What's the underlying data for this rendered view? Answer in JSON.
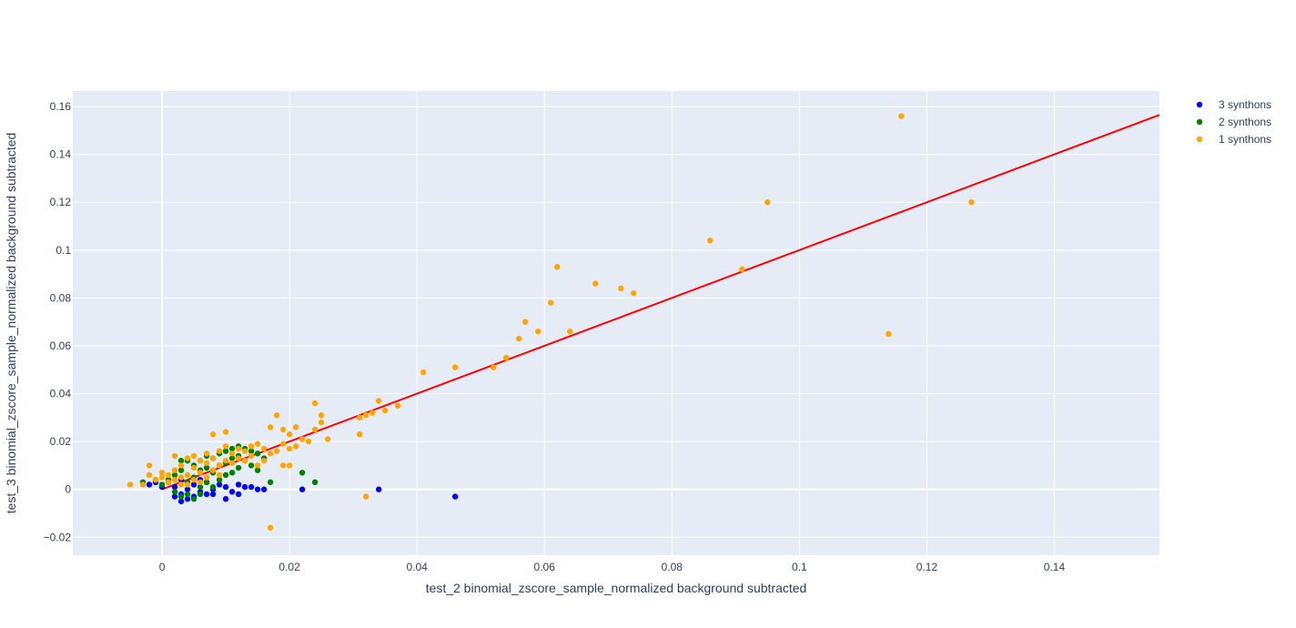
{
  "chart_data": {
    "type": "scatter",
    "title": "",
    "xlabel": "test_2 binomial_zscore_sample_normalized background subtracted",
    "ylabel": "test_3 binomial_zscore_sample_normalized background subtracted",
    "xlim": [
      -0.014,
      0.1565
    ],
    "ylim": [
      -0.0275,
      0.1665
    ],
    "xticks": [
      0,
      0.02,
      0.04,
      0.06,
      0.08,
      0.1,
      0.12,
      0.14
    ],
    "xtick_labels": [
      "0",
      "0.02",
      "0.04",
      "0.06",
      "0.08",
      "0.1",
      "0.12",
      "0.14"
    ],
    "yticks": [
      -0.02,
      0,
      0.02,
      0.04,
      0.06,
      0.08,
      0.1,
      0.12,
      0.14,
      0.16
    ],
    "ytick_labels": [
      "−0.02",
      "0",
      "0.02",
      "0.04",
      "0.06",
      "0.08",
      "0.1",
      "0.12",
      "0.14",
      "0.16"
    ],
    "grid": true,
    "legend_position": "top-right",
    "plot_bg": "#e5ecf6",
    "series": [
      {
        "name": "3 synthons",
        "color": "#0000ff",
        "points": [
          [
            -0.002,
            0.002
          ],
          [
            -0.001,
            0.003
          ],
          [
            0,
            0.001
          ],
          [
            0.001,
            0.003
          ],
          [
            0.002,
            -0.003
          ],
          [
            0.002,
            0.001
          ],
          [
            0.003,
            -0.005
          ],
          [
            0.003,
            -0.002
          ],
          [
            0.003,
            0.004
          ],
          [
            0.004,
            -0.004
          ],
          [
            0.004,
            0.0
          ],
          [
            0.005,
            -0.003
          ],
          [
            0.005,
            0.002
          ],
          [
            0.006,
            -0.001
          ],
          [
            0.006,
            0.004
          ],
          [
            0.007,
            -0.002
          ],
          [
            0.007,
            0.003
          ],
          [
            0.008,
            0.0
          ],
          [
            0.008,
            -0.002
          ],
          [
            0.009,
            0.002
          ],
          [
            0.01,
            -0.004
          ],
          [
            0.01,
            0.001
          ],
          [
            0.011,
            -0.001
          ],
          [
            0.012,
            0.002
          ],
          [
            0.012,
            -0.002
          ],
          [
            0.013,
            0.001
          ],
          [
            0.014,
            0.001
          ],
          [
            0.015,
            0.0
          ],
          [
            0.016,
            0.0
          ],
          [
            0.022,
            0.0
          ],
          [
            0.034,
            0.0
          ],
          [
            0.046,
            -0.003
          ]
        ]
      },
      {
        "name": "2 synthons",
        "color": "#008000",
        "points": [
          [
            -0.003,
            0.003
          ],
          [
            -0.001,
            0.004
          ],
          [
            0,
            0.002
          ],
          [
            0.001,
            0.004
          ],
          [
            0.002,
            0.006
          ],
          [
            0.002,
            -0.001
          ],
          [
            0.003,
            0.012
          ],
          [
            0.003,
            0.008
          ],
          [
            0.003,
            -0.003
          ],
          [
            0.004,
            0.012
          ],
          [
            0.004,
            0.003
          ],
          [
            0.004,
            -0.002
          ],
          [
            0.005,
            0.01
          ],
          [
            0.005,
            0.005
          ],
          [
            0.005,
            -0.004
          ],
          [
            0.006,
            0.012
          ],
          [
            0.006,
            0.008
          ],
          [
            0.006,
            0.001
          ],
          [
            0.006,
            -0.002
          ],
          [
            0.007,
            0.014
          ],
          [
            0.007,
            0.009
          ],
          [
            0.007,
            0.003
          ],
          [
            0.008,
            0.013
          ],
          [
            0.008,
            0.007
          ],
          [
            0.008,
            0.001
          ],
          [
            0.009,
            0.015
          ],
          [
            0.009,
            0.01
          ],
          [
            0.009,
            0.004
          ],
          [
            0.01,
            0.016
          ],
          [
            0.01,
            0.011
          ],
          [
            0.01,
            0.006
          ],
          [
            0.011,
            0.017
          ],
          [
            0.011,
            0.013
          ],
          [
            0.011,
            0.007
          ],
          [
            0.012,
            0.018
          ],
          [
            0.012,
            0.014
          ],
          [
            0.012,
            0.009
          ],
          [
            0.013,
            0.017
          ],
          [
            0.013,
            0.012
          ],
          [
            0.014,
            0.016
          ],
          [
            0.014,
            0.01
          ],
          [
            0.015,
            0.015
          ],
          [
            0.015,
            0.008
          ],
          [
            0.016,
            0.013
          ],
          [
            0.017,
            0.003
          ],
          [
            0.022,
            0.007
          ],
          [
            0.024,
            0.003
          ]
        ]
      },
      {
        "name": "1 synthons",
        "color": "#ffa500",
        "points": [
          [
            -0.005,
            0.002
          ],
          [
            -0.003,
            0.002
          ],
          [
            -0.002,
            0.006
          ],
          [
            -0.002,
            0.01
          ],
          [
            -0.001,
            0.004
          ],
          [
            0,
            0.005
          ],
          [
            0,
            0.007
          ],
          [
            0.001,
            0.003
          ],
          [
            0.001,
            0.006
          ],
          [
            0.002,
            0.004
          ],
          [
            0.002,
            0.008
          ],
          [
            0.002,
            0.014
          ],
          [
            0.003,
            0.005
          ],
          [
            0.003,
            0.01
          ],
          [
            0.003,
            0.002
          ],
          [
            0.004,
            0.006
          ],
          [
            0.004,
            0.013
          ],
          [
            0.004,
            0.002
          ],
          [
            0.005,
            0.004
          ],
          [
            0.005,
            0.009
          ],
          [
            0.005,
            0.014
          ],
          [
            0.006,
            0.007
          ],
          [
            0.006,
            0.012
          ],
          [
            0.006,
            0.003
          ],
          [
            0.007,
            0.005
          ],
          [
            0.007,
            0.011
          ],
          [
            0.007,
            0.015
          ],
          [
            0.008,
            0.008
          ],
          [
            0.008,
            0.013
          ],
          [
            0.008,
            0.023
          ],
          [
            0.009,
            0.01
          ],
          [
            0.009,
            0.016
          ],
          [
            0.009,
            0.006
          ],
          [
            0.01,
            0.012
          ],
          [
            0.01,
            0.018
          ],
          [
            0.01,
            0.024
          ],
          [
            0.011,
            0.011
          ],
          [
            0.011,
            0.015
          ],
          [
            0.012,
            0.013
          ],
          [
            0.012,
            0.017
          ],
          [
            0.013,
            0.012
          ],
          [
            0.013,
            0.016
          ],
          [
            0.014,
            0.014
          ],
          [
            0.014,
            0.018
          ],
          [
            0.015,
            0.01
          ],
          [
            0.015,
            0.019
          ],
          [
            0.016,
            0.012
          ],
          [
            0.016,
            0.017
          ],
          [
            0.017,
            0.015
          ],
          [
            0.017,
            0.026
          ],
          [
            0.017,
            -0.016
          ],
          [
            0.018,
            0.031
          ],
          [
            0.018,
            0.016
          ],
          [
            0.019,
            0.019
          ],
          [
            0.019,
            0.025
          ],
          [
            0.019,
            0.01
          ],
          [
            0.02,
            0.017
          ],
          [
            0.02,
            0.023
          ],
          [
            0.02,
            0.01
          ],
          [
            0.021,
            0.026
          ],
          [
            0.021,
            0.018
          ],
          [
            0.022,
            0.021
          ],
          [
            0.023,
            0.02
          ],
          [
            0.024,
            0.025
          ],
          [
            0.024,
            0.036
          ],
          [
            0.025,
            0.028
          ],
          [
            0.025,
            0.031
          ],
          [
            0.026,
            0.021
          ],
          [
            0.031,
            0.023
          ],
          [
            0.031,
            0.03
          ],
          [
            0.032,
            0.031
          ],
          [
            0.032,
            -0.003
          ],
          [
            0.033,
            0.032
          ],
          [
            0.034,
            0.037
          ],
          [
            0.035,
            0.033
          ],
          [
            0.037,
            0.035
          ],
          [
            0.041,
            0.049
          ],
          [
            0.046,
            0.051
          ],
          [
            0.052,
            0.051
          ],
          [
            0.054,
            0.055
          ],
          [
            0.056,
            0.063
          ],
          [
            0.057,
            0.07
          ],
          [
            0.059,
            0.066
          ],
          [
            0.061,
            0.078
          ],
          [
            0.062,
            0.093
          ],
          [
            0.064,
            0.066
          ],
          [
            0.068,
            0.086
          ],
          [
            0.072,
            0.084
          ],
          [
            0.074,
            0.082
          ],
          [
            0.086,
            0.104
          ],
          [
            0.091,
            0.092
          ],
          [
            0.095,
            0.12
          ],
          [
            0.114,
            0.065
          ],
          [
            0.116,
            0.156
          ],
          [
            0.127,
            0.12
          ]
        ]
      }
    ],
    "fit_line": {
      "color": "#ff0000",
      "points": [
        [
          0,
          0
        ],
        [
          0.1565,
          0.1565
        ]
      ]
    }
  }
}
